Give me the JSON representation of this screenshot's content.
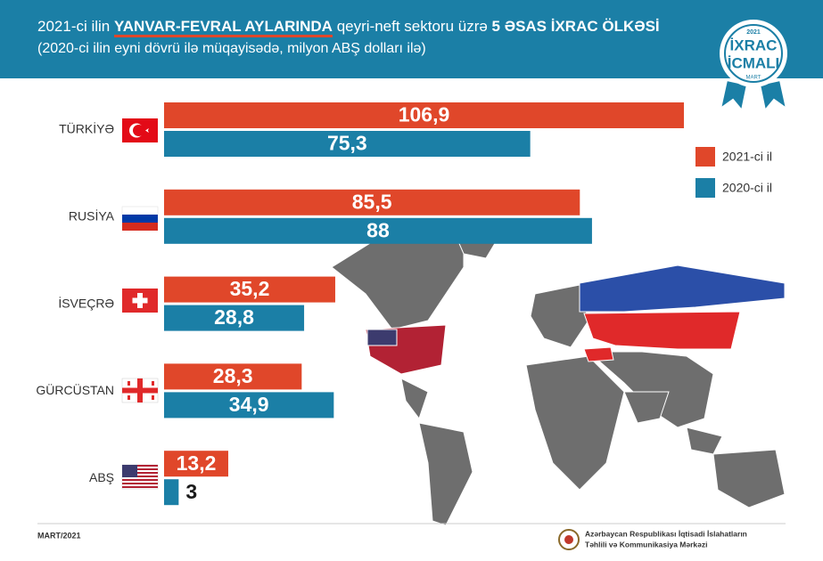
{
  "chart_data": {
    "type": "bar",
    "orientation": "horizontal",
    "title": [
      {
        "text": "2021-ci ilin ",
        "bold": false,
        "underline": false
      },
      {
        "text": "YANVAR-FEVRAL AYLARINDA",
        "bold": true,
        "underline": true
      },
      {
        "text": " qeyri-neft sektoru üzrə ",
        "bold": false,
        "underline": false
      },
      {
        "text": "5 ƏSAS İXRAC ÖLKƏSİ",
        "bold": true,
        "underline": false
      }
    ],
    "subtitle": "(2020-ci ilin eyni dövrü ilə müqayisədə, milyon ABŞ dolları ilə)",
    "categories": [
      "TÜRKİYƏ",
      "RUSİYA",
      "İSVEÇRƏ",
      "GÜRCÜSTAN",
      "ABŞ"
    ],
    "series": [
      {
        "name": "2021-ci il",
        "color": "#e0472a",
        "values": [
          106.9,
          85.5,
          35.2,
          28.3,
          13.2
        ],
        "value_labels": [
          "106,9",
          "85,5",
          "35,2",
          "28,3",
          "13,2"
        ]
      },
      {
        "name": "2020-ci il",
        "color": "#1b7fa6",
        "values": [
          75.3,
          88,
          28.8,
          34.9,
          3
        ],
        "value_labels": [
          "75,3",
          "88",
          "28,8",
          "34,9",
          "3"
        ]
      }
    ],
    "legend": "right"
  },
  "badge": {
    "year": "2021",
    "line1": "İXRAC",
    "line2": "İCMALI",
    "month": "MART"
  },
  "footer": {
    "date": "MART/2021",
    "org_line1": "Azərbaycan Respublikası İqtisadi İslahatların",
    "org_line2": "Təhlili və Kommunikasiya Mərkəzi"
  }
}
